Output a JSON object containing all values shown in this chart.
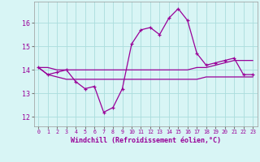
{
  "hours": [
    0,
    1,
    2,
    3,
    4,
    5,
    6,
    7,
    8,
    9,
    10,
    11,
    12,
    13,
    14,
    15,
    16,
    17,
    18,
    19,
    20,
    21,
    22,
    23
  ],
  "windchill": [
    14.1,
    13.8,
    13.9,
    14.0,
    13.5,
    13.2,
    13.3,
    12.2,
    12.4,
    13.2,
    15.1,
    15.7,
    15.8,
    15.5,
    16.2,
    16.6,
    16.1,
    14.7,
    14.2,
    14.3,
    14.4,
    14.5,
    13.8,
    13.8
  ],
  "temp_max": [
    14.1,
    14.1,
    14.0,
    14.0,
    14.0,
    14.0,
    14.0,
    14.0,
    14.0,
    14.0,
    14.0,
    14.0,
    14.0,
    14.0,
    14.0,
    14.0,
    14.0,
    14.1,
    14.1,
    14.2,
    14.3,
    14.4,
    14.4,
    14.4
  ],
  "temp_min": [
    14.1,
    13.8,
    13.7,
    13.6,
    13.6,
    13.6,
    13.6,
    13.6,
    13.6,
    13.6,
    13.6,
    13.6,
    13.6,
    13.6,
    13.6,
    13.6,
    13.6,
    13.6,
    13.7,
    13.7,
    13.7,
    13.7,
    13.7,
    13.7
  ],
  "line_color": "#990099",
  "bg_color": "#d8f5f5",
  "grid_color": "#aadddd",
  "ylabel_values": [
    12,
    13,
    14,
    15,
    16
  ],
  "ylim": [
    11.6,
    16.9
  ],
  "xlim": [
    -0.5,
    23.5
  ],
  "xlabel": "Windchill (Refroidissement éolien,°C)",
  "tick_labels": [
    "0",
    "1",
    "2",
    "3",
    "4",
    "5",
    "6",
    "7",
    "8",
    "9",
    "10",
    "11",
    "12",
    "13",
    "14",
    "15",
    "16",
    "17",
    "18",
    "19",
    "20",
    "21",
    "22",
    "23"
  ]
}
